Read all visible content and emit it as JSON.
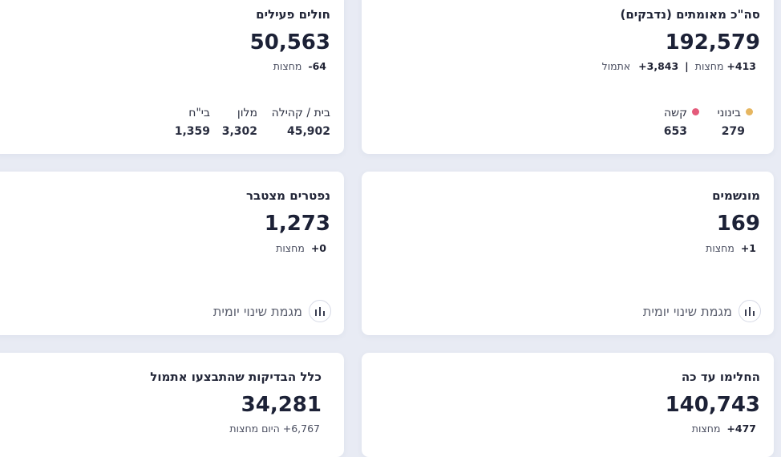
{
  "confirmed": {
    "title": "סה\"כ מאומתים (נדבקים)",
    "value": "192,579",
    "midnight_count": "413+",
    "midnight_label": "מחצות",
    "separator": "|",
    "yesterday_count": "3,843+",
    "yesterday_label": "אתמול",
    "severity": [
      {
        "label": "בינוני",
        "value": "279",
        "color": "#e6b660"
      },
      {
        "label": "קשה",
        "value": "653",
        "color": "#e45a7a"
      }
    ]
  },
  "active": {
    "title": "חולים פעילים",
    "value": "50,563",
    "change_count": "64-",
    "change_label": "מחצות",
    "breakdown": [
      {
        "label": "בית / קהילה",
        "value": "45,902"
      },
      {
        "label": "מלון",
        "value": "3,302"
      },
      {
        "label": "בי\"ח",
        "value": "1,359"
      }
    ]
  },
  "ventilated": {
    "title": "מונשמים",
    "value": "169",
    "change_count": "1+",
    "change_label": "מחצות",
    "trend_link": "מגמת שינוי יומית"
  },
  "deceased": {
    "title": "נפטרים מצטבר",
    "value": "1,273",
    "change_count": "0+",
    "change_label": "מחצות",
    "trend_link": "מגמת שינוי יומית"
  },
  "recovered": {
    "title": "החלימו עד כה",
    "value": "140,743",
    "change_count": "477+",
    "change_label": "מחצות"
  },
  "tests": {
    "title": "כלל הבדיקות שהתבצעו אתמול",
    "value": "34,281",
    "change_text": "6,767+ היום מחצות"
  },
  "icons": {
    "bar_chart": "bar-chart-icon"
  }
}
